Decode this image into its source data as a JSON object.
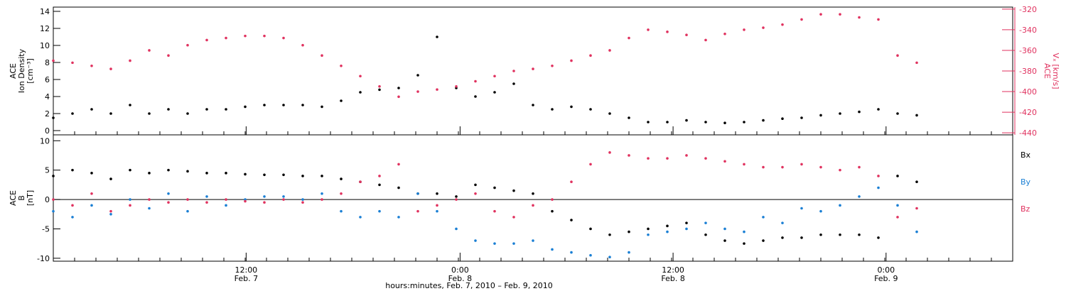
{
  "figure": {
    "xlabel": "hours:minutes, Feb. 7, 2010 – Feb. 9, 2010"
  },
  "colors": {
    "black": "#000000",
    "red": "#e0325f",
    "blue": "#1a7fd4"
  },
  "chart_data": [
    {
      "type": "scatter",
      "panel": "top",
      "left_label_lines": [
        "ACE",
        "Ion Density",
        "[cm⁻³]"
      ],
      "right_label_lines": [
        "ACE",
        "Vₓ [km/s]"
      ],
      "xlim": [
        0,
        1
      ],
      "ylim": [
        -0.5,
        14.5
      ],
      "yticks": [
        0,
        2,
        4,
        6,
        8,
        10,
        12,
        14
      ],
      "y2lim": [
        -442,
        -318
      ],
      "y2ticks": [
        -440,
        -420,
        -400,
        -380,
        -360,
        -340,
        -320
      ],
      "x_tick_labels": [
        {
          "time": "12:00",
          "date": "Feb. 7",
          "x": 0.201
        },
        {
          "time": "0:00",
          "date": "Feb. 8",
          "x": 0.424
        },
        {
          "time": "12:00",
          "date": "Feb. 8",
          "x": 0.646
        },
        {
          "time": "0:00",
          "date": "Feb. 9",
          "x": 0.868
        }
      ],
      "series": [
        {
          "name": "Ion Density",
          "axis": "left",
          "color": "#000000",
          "x": [
            0.0,
            0.02,
            0.04,
            0.06,
            0.08,
            0.1,
            0.12,
            0.14,
            0.16,
            0.18,
            0.2,
            0.22,
            0.24,
            0.26,
            0.28,
            0.3,
            0.32,
            0.34,
            0.36,
            0.38,
            0.4,
            0.42,
            0.44,
            0.46,
            0.48,
            0.5,
            0.52,
            0.54,
            0.56,
            0.58,
            0.6,
            0.62,
            0.64,
            0.66,
            0.68,
            0.7,
            0.72,
            0.74,
            0.76,
            0.78,
            0.8,
            0.82,
            0.84,
            0.86,
            0.88,
            0.9
          ],
          "values": [
            1.5,
            2.0,
            2.5,
            2.0,
            3.0,
            2.0,
            2.5,
            2.0,
            2.5,
            2.5,
            2.8,
            3.0,
            3.0,
            3.0,
            2.8,
            3.5,
            4.5,
            4.8,
            5.0,
            6.5,
            11.0,
            5.0,
            4.0,
            4.5,
            5.5,
            3.0,
            2.5,
            2.8,
            2.5,
            2.0,
            1.5,
            1.0,
            1.0,
            1.2,
            1.0,
            0.9,
            1.0,
            1.2,
            1.4,
            1.5,
            1.8,
            2.0,
            2.2,
            2.5,
            2.0,
            1.8
          ]
        },
        {
          "name": "Vx",
          "axis": "right",
          "color": "#e0325f",
          "x": [
            0.0,
            0.02,
            0.04,
            0.06,
            0.08,
            0.1,
            0.12,
            0.14,
            0.16,
            0.18,
            0.2,
            0.22,
            0.24,
            0.26,
            0.28,
            0.3,
            0.32,
            0.34,
            0.36,
            0.38,
            0.4,
            0.42,
            0.44,
            0.46,
            0.48,
            0.5,
            0.52,
            0.54,
            0.56,
            0.58,
            0.6,
            0.62,
            0.64,
            0.66,
            0.68,
            0.7,
            0.72,
            0.74,
            0.76,
            0.78,
            0.8,
            0.82,
            0.84,
            0.86,
            0.88,
            0.9
          ],
          "values": [
            -370,
            -372,
            -375,
            -378,
            -370,
            -360,
            -365,
            -355,
            -350,
            -348,
            -346,
            -346,
            -348,
            -355,
            -365,
            -375,
            -385,
            -395,
            -405,
            -400,
            -398,
            -395,
            -390,
            -385,
            -380,
            -378,
            -375,
            -370,
            -365,
            -360,
            -348,
            -340,
            -342,
            -345,
            -350,
            -344,
            -340,
            -338,
            -335,
            -330,
            -325,
            -325,
            -328,
            -330,
            -365,
            -372
          ]
        }
      ]
    },
    {
      "type": "scatter",
      "panel": "bottom",
      "left_label_lines": [
        "ACE",
        "B",
        "[nT]"
      ],
      "xlim": [
        0,
        1
      ],
      "ylim": [
        -10.5,
        11
      ],
      "yticks": [
        -10,
        -5,
        0,
        5,
        10
      ],
      "x_tick_labels": [
        {
          "time": "12:00",
          "date": "Feb. 7",
          "x": 0.201
        },
        {
          "time": "0:00",
          "date": "Feb. 8",
          "x": 0.424
        },
        {
          "time": "12:00",
          "date": "Feb. 8",
          "x": 0.646
        },
        {
          "time": "0:00",
          "date": "Feb. 9",
          "x": 0.868
        }
      ],
      "legend_position": "right",
      "series": [
        {
          "name": "Bx",
          "color": "#000000",
          "x": [
            0.0,
            0.02,
            0.04,
            0.06,
            0.08,
            0.1,
            0.12,
            0.14,
            0.16,
            0.18,
            0.2,
            0.22,
            0.24,
            0.26,
            0.28,
            0.3,
            0.32,
            0.34,
            0.36,
            0.38,
            0.4,
            0.42,
            0.44,
            0.46,
            0.48,
            0.5,
            0.52,
            0.54,
            0.56,
            0.58,
            0.6,
            0.62,
            0.64,
            0.66,
            0.68,
            0.7,
            0.72,
            0.74,
            0.76,
            0.78,
            0.8,
            0.82,
            0.84,
            0.86,
            0.88,
            0.9
          ],
          "values": [
            4.0,
            5.0,
            4.5,
            3.5,
            5.0,
            4.5,
            5.0,
            4.8,
            4.5,
            4.5,
            4.3,
            4.2,
            4.2,
            4.0,
            4.0,
            3.5,
            3.0,
            2.5,
            2.0,
            1.0,
            1.0,
            0.5,
            2.5,
            2.0,
            1.5,
            1.0,
            -2.0,
            -3.5,
            -5.0,
            -6.0,
            -5.5,
            -5.0,
            -4.5,
            -4.0,
            -6.0,
            -7.0,
            -7.5,
            -7.0,
            -6.5,
            -6.5,
            -6.0,
            -6.0,
            -6.0,
            -6.5,
            4.0,
            3.0
          ]
        },
        {
          "name": "By",
          "color": "#1a7fd4",
          "x": [
            0.0,
            0.02,
            0.04,
            0.06,
            0.08,
            0.1,
            0.12,
            0.14,
            0.16,
            0.18,
            0.2,
            0.22,
            0.24,
            0.26,
            0.28,
            0.3,
            0.32,
            0.34,
            0.36,
            0.38,
            0.4,
            0.42,
            0.44,
            0.46,
            0.48,
            0.5,
            0.52,
            0.54,
            0.56,
            0.58,
            0.6,
            0.62,
            0.64,
            0.66,
            0.68,
            0.7,
            0.72,
            0.74,
            0.76,
            0.78,
            0.8,
            0.82,
            0.84,
            0.86,
            0.88,
            0.9
          ],
          "values": [
            -2.0,
            -3.0,
            -1.0,
            -2.5,
            0.0,
            -1.5,
            1.0,
            -2.0,
            0.5,
            -1.0,
            0.0,
            0.5,
            0.5,
            0.0,
            1.0,
            -2.0,
            -3.0,
            -2.0,
            -3.0,
            1.0,
            -2.0,
            -5.0,
            -7.0,
            -7.5,
            -7.5,
            -7.0,
            -8.5,
            -9.0,
            -9.5,
            -9.8,
            -9.0,
            -6.0,
            -5.5,
            -5.0,
            -4.0,
            -5.0,
            -5.5,
            -3.0,
            -4.0,
            -1.5,
            -2.0,
            -1.0,
            0.5,
            2.0,
            -1.0,
            -5.5
          ]
        },
        {
          "name": "Bz",
          "color": "#e0325f",
          "x": [
            0.0,
            0.02,
            0.04,
            0.06,
            0.08,
            0.1,
            0.12,
            0.14,
            0.16,
            0.18,
            0.2,
            0.22,
            0.24,
            0.26,
            0.28,
            0.3,
            0.32,
            0.34,
            0.36,
            0.38,
            0.4,
            0.42,
            0.44,
            0.46,
            0.48,
            0.5,
            0.52,
            0.54,
            0.56,
            0.58,
            0.6,
            0.62,
            0.64,
            0.66,
            0.68,
            0.7,
            0.72,
            0.74,
            0.76,
            0.78,
            0.8,
            0.82,
            0.84,
            0.86,
            0.88,
            0.9
          ],
          "values": [
            0.0,
            -1.0,
            1.0,
            -2.0,
            -1.0,
            0.0,
            -0.5,
            0.0,
            -0.5,
            0.0,
            -0.3,
            -0.5,
            0.0,
            -0.5,
            0.0,
            1.0,
            3.0,
            4.0,
            6.0,
            -2.0,
            -1.0,
            0.0,
            1.0,
            -2.0,
            -3.0,
            -1.0,
            0.0,
            3.0,
            6.0,
            8.0,
            7.5,
            7.0,
            7.0,
            7.5,
            7.0,
            6.5,
            6.0,
            5.5,
            5.5,
            6.0,
            5.5,
            5.0,
            5.5,
            4.0,
            -3.0,
            -1.5
          ]
        }
      ]
    }
  ]
}
